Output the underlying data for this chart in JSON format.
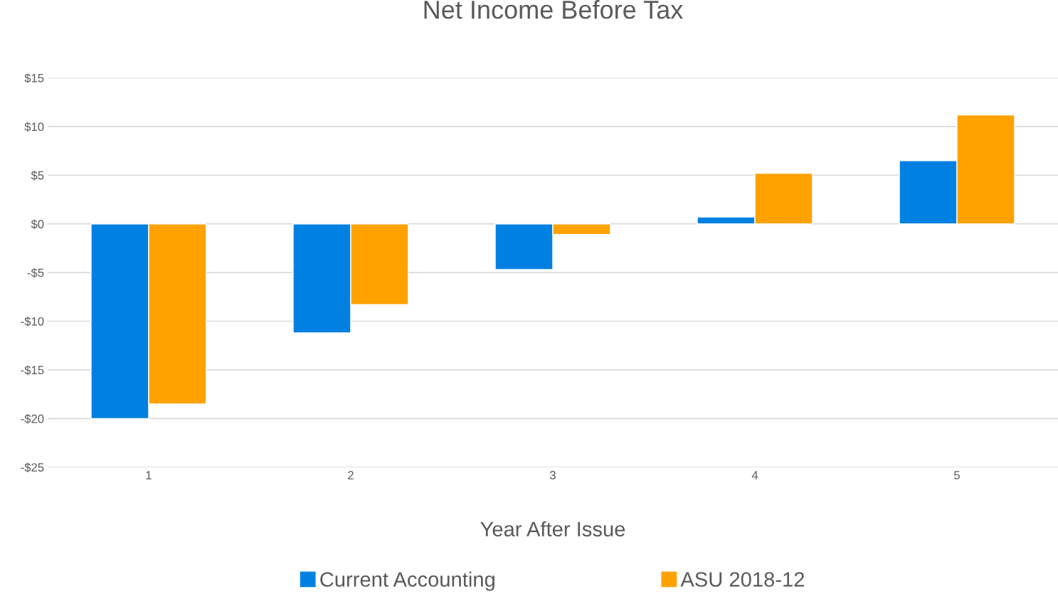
{
  "chart_data": {
    "type": "bar",
    "title": "Net Income Before Tax",
    "xlabel": "Year After Issue",
    "categories": [
      "1",
      "2",
      "3",
      "4",
      "5"
    ],
    "series": [
      {
        "name": "Current Accounting",
        "color": "#0080e0",
        "values": [
          -20.0,
          -11.2,
          -4.7,
          0.7,
          6.5
        ]
      },
      {
        "name": "ASU 2018-12",
        "color": "#ffa200",
        "values": [
          -18.5,
          -8.3,
          -1.1,
          5.2,
          11.2
        ]
      }
    ],
    "ylim": [
      -25,
      15
    ],
    "yticks": [
      {
        "value": -25,
        "label": "-$25"
      },
      {
        "value": -20,
        "label": "-$20"
      },
      {
        "value": -15,
        "label": "-$15"
      },
      {
        "value": -10,
        "label": "-$10"
      },
      {
        "value": -5,
        "label": "-$5"
      },
      {
        "value": 0,
        "label": "$0"
      },
      {
        "value": 5,
        "label": "$5"
      },
      {
        "value": 10,
        "label": "$10"
      },
      {
        "value": 15,
        "label": "$15"
      }
    ],
    "grid": "y",
    "legend": "bottom"
  }
}
